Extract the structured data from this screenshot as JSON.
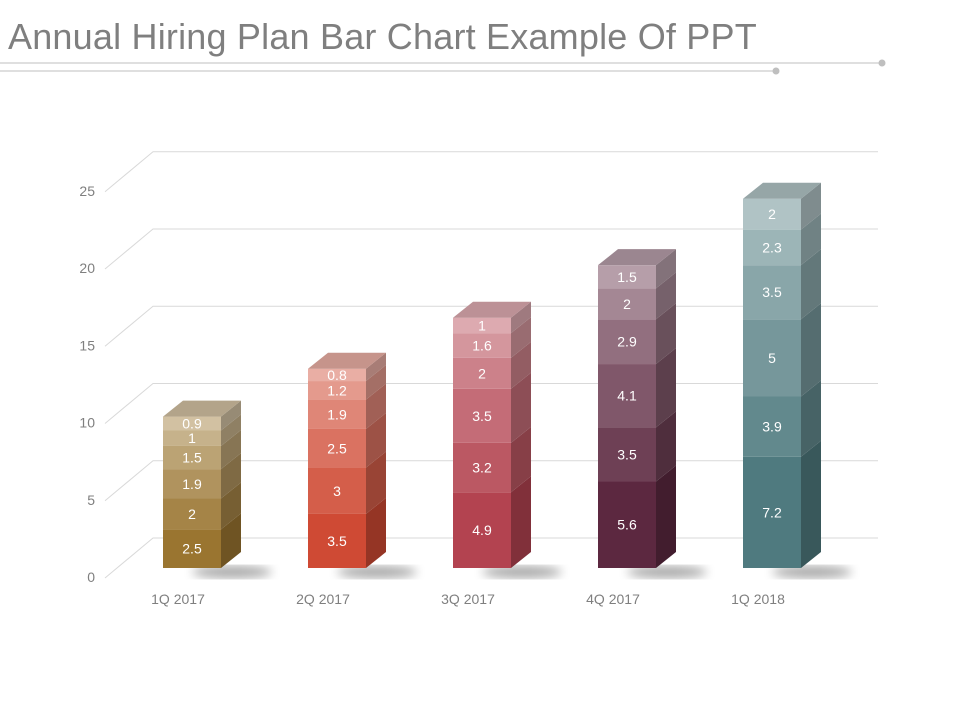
{
  "title": "Annual Hiring Plan Bar Chart Example Of PPT",
  "chart_data": {
    "type": "bar",
    "stacked": true,
    "three_d": true,
    "categories": [
      "1Q 2017",
      "2Q 2017",
      "3Q 2017",
      "4Q 2017",
      "1Q 2018"
    ],
    "stacks": [
      [
        2.5,
        2,
        1.9,
        1.5,
        1,
        0.9
      ],
      [
        3.5,
        3,
        2.5,
        1.9,
        1.2,
        0.8
      ],
      [
        4.9,
        3.2,
        3.5,
        2,
        1.6,
        1
      ],
      [
        5.6,
        3.5,
        4.1,
        2.9,
        2,
        1.5
      ],
      [
        7.2,
        3.9,
        5,
        3.5,
        2.3,
        2
      ]
    ],
    "colors": [
      "#9a7530",
      "#cf4a34",
      "#b34350",
      "#5c2840",
      "#4f7a7f"
    ],
    "ylim": [
      0,
      25
    ],
    "yticks": [
      0,
      5,
      10,
      15,
      20,
      25
    ],
    "grid": true,
    "legend": "none",
    "xlabel": "",
    "ylabel": ""
  }
}
